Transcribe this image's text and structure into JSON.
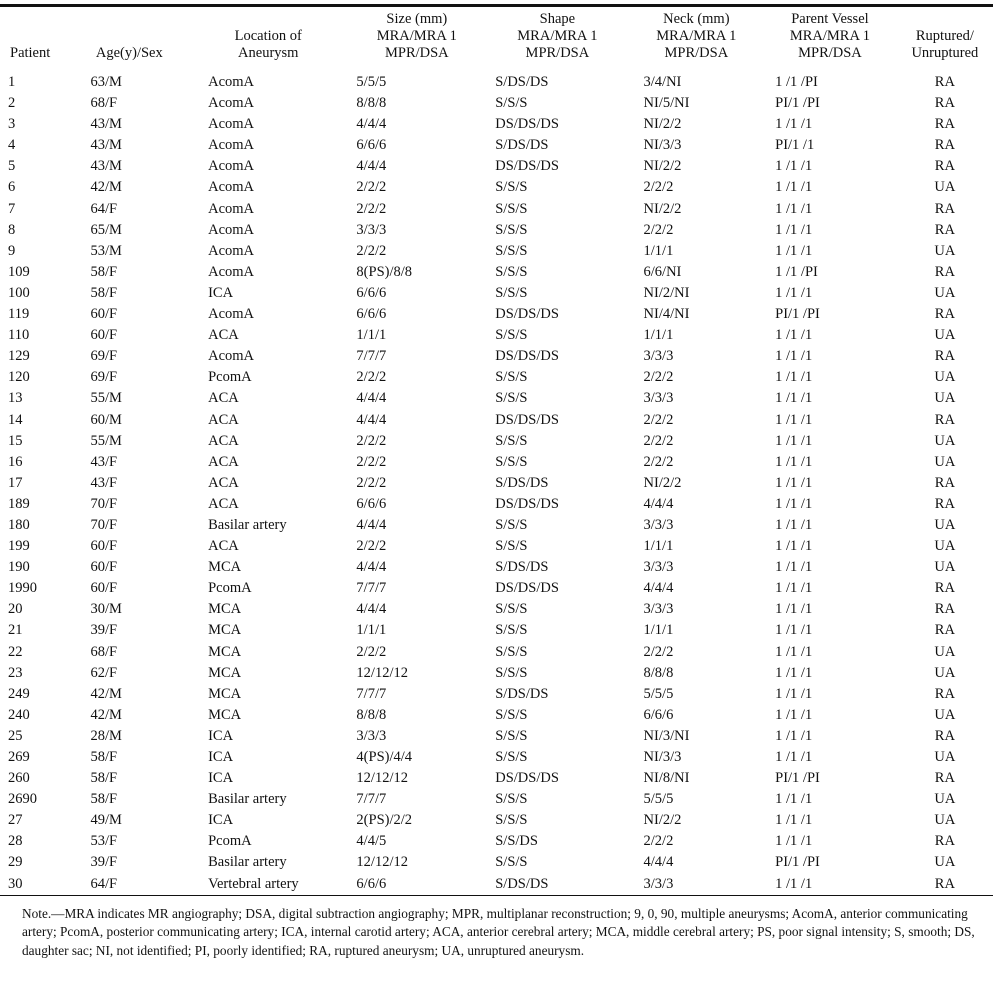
{
  "table": {
    "headers": {
      "patient": "Patient",
      "age_sex": "Age(y)/Sex",
      "location": [
        "Location of",
        "Aneurysm"
      ],
      "size": [
        "Size (mm)",
        "MRA/MRA 1",
        "MPR/DSA"
      ],
      "shape": [
        "Shape",
        "MRA/MRA 1",
        "MPR/DSA"
      ],
      "neck": [
        "Neck (mm)",
        "MRA/MRA 1",
        "MPR/DSA"
      ],
      "parent_vessel": [
        "Parent Vessel",
        "MRA/MRA 1",
        "MPR/DSA"
      ],
      "ruptured": [
        "Ruptured/",
        "Unruptured"
      ]
    },
    "rows": [
      [
        "1",
        "63/M",
        "AcomA",
        "5/5/5",
        "S/DS/DS",
        "3/4/NI",
        "1 /1 /PI",
        "RA"
      ],
      [
        "2",
        "68/F",
        "AcomA",
        "8/8/8",
        "S/S/S",
        "NI/5/NI",
        "PI/1 /PI",
        "RA"
      ],
      [
        "3",
        "43/M",
        "AcomA",
        "4/4/4",
        "DS/DS/DS",
        "NI/2/2",
        "1 /1 /1",
        "RA"
      ],
      [
        "4",
        "43/M",
        "AcomA",
        "6/6/6",
        "S/DS/DS",
        "NI/3/3",
        "PI/1 /1",
        "RA"
      ],
      [
        "5",
        "43/M",
        "AcomA",
        "4/4/4",
        "DS/DS/DS",
        "NI/2/2",
        "1 /1 /1",
        "RA"
      ],
      [
        "6",
        "42/M",
        "AcomA",
        "2/2/2",
        "S/S/S",
        "2/2/2",
        "1 /1 /1",
        "UA"
      ],
      [
        "7",
        "64/F",
        "AcomA",
        "2/2/2",
        "S/S/S",
        "NI/2/2",
        "1 /1 /1",
        "RA"
      ],
      [
        "8",
        "65/M",
        "AcomA",
        "3/3/3",
        "S/S/S",
        "2/2/2",
        "1 /1 /1",
        "RA"
      ],
      [
        "9",
        "53/M",
        "AcomA",
        "2/2/2",
        "S/S/S",
        "1/1/1",
        "1 /1 /1",
        "UA"
      ],
      [
        "109",
        "58/F",
        "AcomA",
        "8(PS)/8/8",
        "S/S/S",
        "6/6/NI",
        "1 /1 /PI",
        "RA"
      ],
      [
        "100",
        "58/F",
        "ICA",
        "6/6/6",
        "S/S/S",
        "NI/2/NI",
        "1 /1 /1",
        "UA"
      ],
      [
        "119",
        "60/F",
        "AcomA",
        "6/6/6",
        "DS/DS/DS",
        "NI/4/NI",
        "PI/1 /PI",
        "RA"
      ],
      [
        "110",
        "60/F",
        "ACA",
        "1/1/1",
        "S/S/S",
        "1/1/1",
        "1 /1 /1",
        "UA"
      ],
      [
        "129",
        "69/F",
        "AcomA",
        "7/7/7",
        "DS/DS/DS",
        "3/3/3",
        "1 /1 /1",
        "RA"
      ],
      [
        "120",
        "69/F",
        "PcomA",
        "2/2/2",
        "S/S/S",
        "2/2/2",
        "1 /1 /1",
        "UA"
      ],
      [
        "13",
        "55/M",
        "ACA",
        "4/4/4",
        "S/S/S",
        "3/3/3",
        "1 /1 /1",
        "UA"
      ],
      [
        "14",
        "60/M",
        "ACA",
        "4/4/4",
        "DS/DS/DS",
        "2/2/2",
        "1 /1 /1",
        "RA"
      ],
      [
        "15",
        "55/M",
        "ACA",
        "2/2/2",
        "S/S/S",
        "2/2/2",
        "1 /1 /1",
        "UA"
      ],
      [
        "16",
        "43/F",
        "ACA",
        "2/2/2",
        "S/S/S",
        "2/2/2",
        "1 /1 /1",
        "UA"
      ],
      [
        "17",
        "43/F",
        "ACA",
        "2/2/2",
        "S/DS/DS",
        "NI/2/2",
        "1 /1 /1",
        "RA"
      ],
      [
        "189",
        "70/F",
        "ACA",
        "6/6/6",
        "DS/DS/DS",
        "4/4/4",
        "1 /1 /1",
        "RA"
      ],
      [
        "180",
        "70/F",
        "Basilar artery",
        "4/4/4",
        "S/S/S",
        "3/3/3",
        "1 /1 /1",
        "UA"
      ],
      [
        "199",
        "60/F",
        "ACA",
        "2/2/2",
        "S/S/S",
        "1/1/1",
        "1 /1 /1",
        "UA"
      ],
      [
        "190",
        "60/F",
        "MCA",
        "4/4/4",
        "S/DS/DS",
        "3/3/3",
        "1 /1 /1",
        "UA"
      ],
      [
        "1990",
        "60/F",
        "PcomA",
        "7/7/7",
        "DS/DS/DS",
        "4/4/4",
        "1 /1 /1",
        "RA"
      ],
      [
        "20",
        "30/M",
        "MCA",
        "4/4/4",
        "S/S/S",
        "3/3/3",
        "1 /1 /1",
        "RA"
      ],
      [
        "21",
        "39/F",
        "MCA",
        "1/1/1",
        "S/S/S",
        "1/1/1",
        "1 /1 /1",
        "RA"
      ],
      [
        "22",
        "68/F",
        "MCA",
        "2/2/2",
        "S/S/S",
        "2/2/2",
        "1 /1 /1",
        "UA"
      ],
      [
        "23",
        "62/F",
        "MCA",
        "12/12/12",
        "S/S/S",
        "8/8/8",
        "1 /1 /1",
        "UA"
      ],
      [
        "249",
        "42/M",
        "MCA",
        "7/7/7",
        "S/DS/DS",
        "5/5/5",
        "1 /1 /1",
        "RA"
      ],
      [
        "240",
        "42/M",
        "MCA",
        "8/8/8",
        "S/S/S",
        "6/6/6",
        "1 /1 /1",
        "UA"
      ],
      [
        "25",
        "28/M",
        "ICA",
        "3/3/3",
        "S/S/S",
        "NI/3/NI",
        "1 /1 /1",
        "RA"
      ],
      [
        "269",
        "58/F",
        "ICA",
        "4(PS)/4/4",
        "S/S/S",
        "NI/3/3",
        "1 /1 /1",
        "UA"
      ],
      [
        "260",
        "58/F",
        "ICA",
        "12/12/12",
        "DS/DS/DS",
        "NI/8/NI",
        "PI/1 /PI",
        "RA"
      ],
      [
        "2690",
        "58/F",
        "Basilar artery",
        "7/7/7",
        "S/S/S",
        "5/5/5",
        "1 /1 /1",
        "UA"
      ],
      [
        "27",
        "49/M",
        "ICA",
        "2(PS)/2/2",
        "S/S/S",
        "NI/2/2",
        "1 /1 /1",
        "UA"
      ],
      [
        "28",
        "53/F",
        "PcomA",
        "4/4/5",
        "S/S/DS",
        "2/2/2",
        "1 /1 /1",
        "RA"
      ],
      [
        "29",
        "39/F",
        "Basilar artery",
        "12/12/12",
        "S/S/S",
        "4/4/4",
        "PI/1 /PI",
        "UA"
      ],
      [
        "30",
        "64/F",
        "Vertebral artery",
        "6/6/6",
        "S/DS/DS",
        "3/3/3",
        "1 /1 /1",
        "RA"
      ]
    ]
  },
  "note": "Note.—MRA indicates MR angiography; DSA, digital subtraction angiography; MPR, multiplanar reconstruction; 9, 0, 90, multiple aneurysms; AcomA, anterior communicating artery; PcomA, posterior communicating artery; ICA, internal carotid artery; ACA, anterior cerebral artery; MCA, middle cerebral artery; PS, poor signal intensity; S, smooth; DS, daughter sac; NI, not identified; PI, poorly identified; RA, ruptured aneurysm; UA, unruptured aneurysm."
}
